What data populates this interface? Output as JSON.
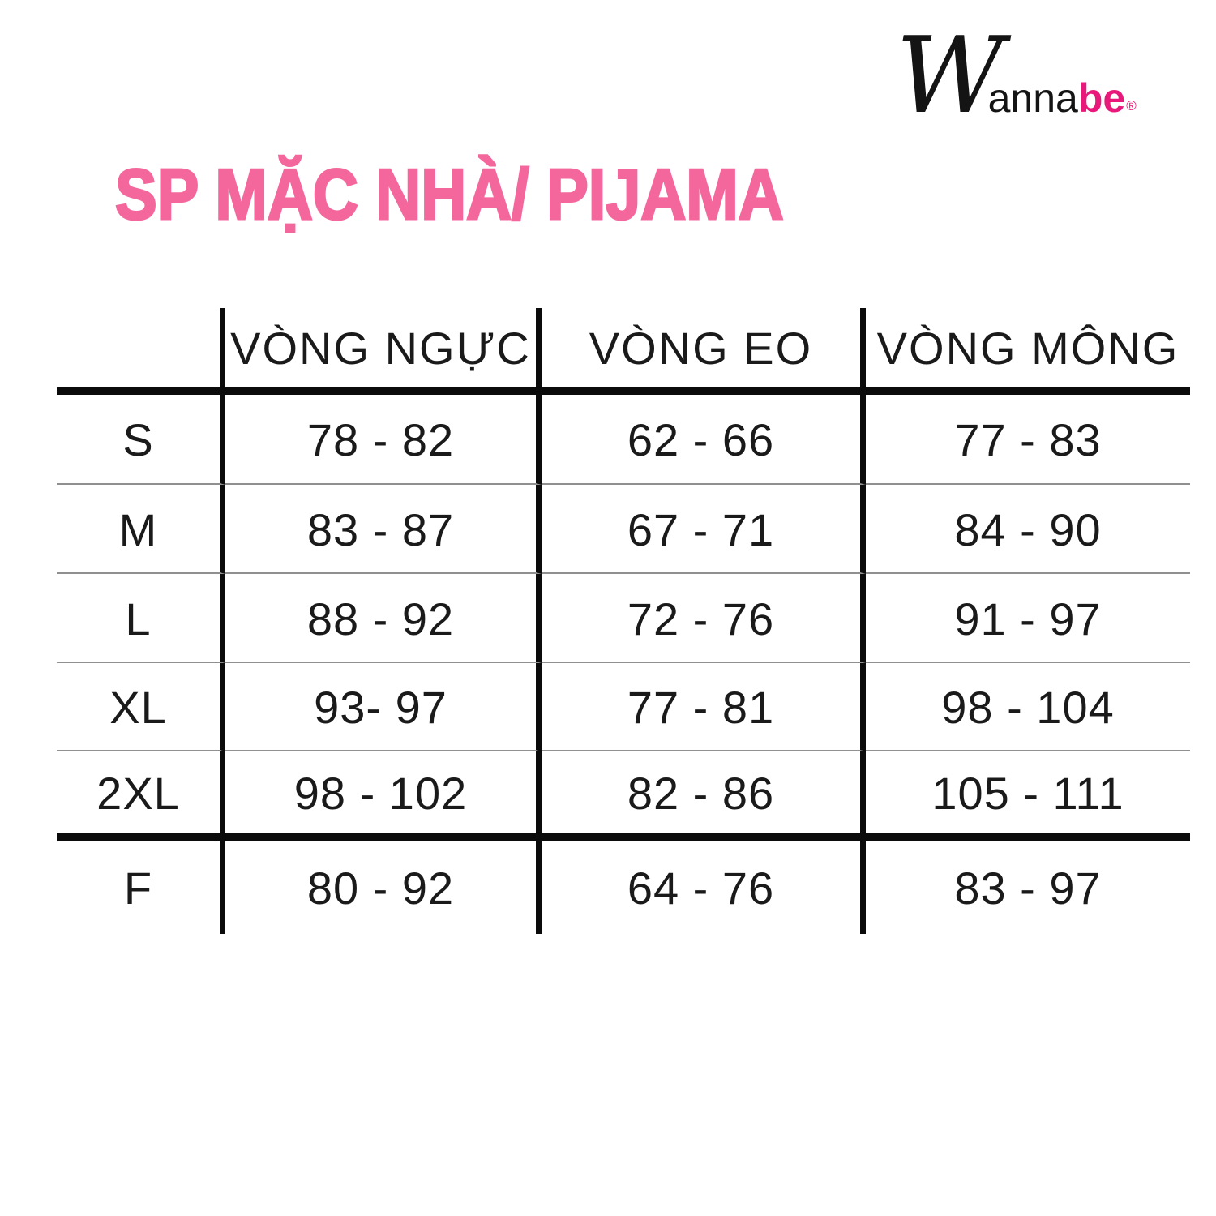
{
  "logo": {
    "script_initial": "W",
    "middle": "anna",
    "accent": "be",
    "registered_mark": "®"
  },
  "chart_data": {
    "type": "table",
    "title": "SP MẶC NHÀ/ PIJAMA",
    "columns": [
      "",
      "VÒNG NGỰC",
      "VÒNG EO",
      "VÒNG MÔNG"
    ],
    "rows": [
      [
        "S",
        "78 - 82",
        "62 - 66",
        "77 - 83"
      ],
      [
        "M",
        "83 - 87",
        "67 - 71",
        "84 - 90"
      ],
      [
        "L",
        "88 - 92",
        "72 - 76",
        "91 - 97"
      ],
      [
        "XL",
        "93- 97",
        "77 - 81",
        "98 - 104"
      ],
      [
        "2XL",
        "98 - 102",
        "82 - 86",
        "105 - 111"
      ],
      [
        "F",
        "80 - 92",
        "64 - 76",
        "83 - 97"
      ]
    ]
  },
  "colors": {
    "title_pink": "#F4679C",
    "logo_pink": "#E8197B",
    "line_black": "#0B0B0B",
    "thin_line": "#909090",
    "text": "#1A1A1A"
  }
}
